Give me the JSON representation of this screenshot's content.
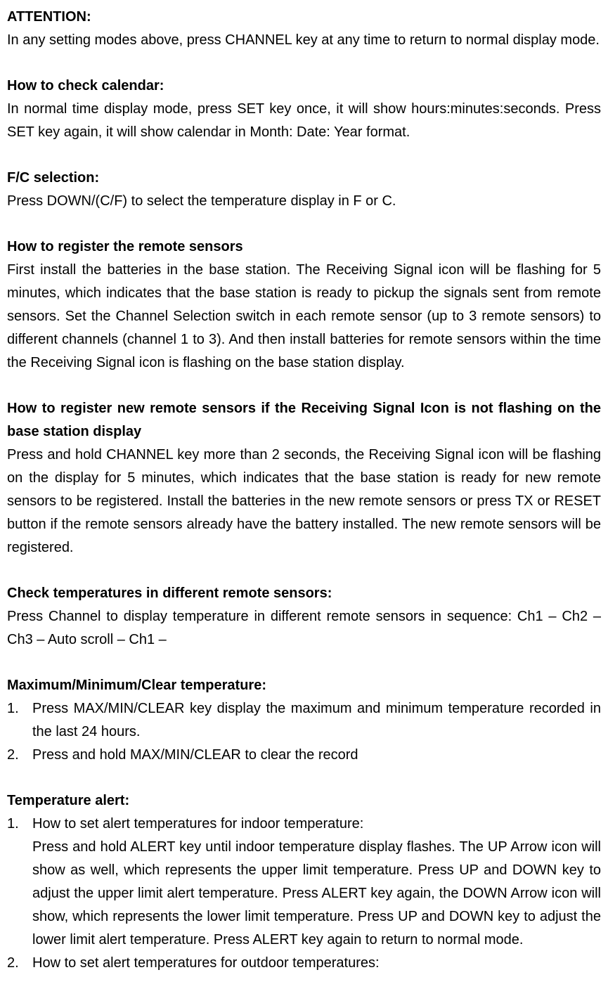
{
  "s1": {
    "h": "ATTENTION:",
    "p": "In any setting modes above, press CHANNEL key at any time to return to normal display mode."
  },
  "s2": {
    "h": "How to check calendar:",
    "p": "In normal time display mode, press SET key once, it will show hours:minutes:seconds. Press SET key again, it will show calendar in Month: Date: Year format."
  },
  "s3": {
    "h": "F/C selection:",
    "p": "Press DOWN/(C/F) to select the temperature display in F or C."
  },
  "s4": {
    "h": "How to register the remote sensors",
    "p": "First install the batteries in the base station. The Receiving Signal icon will be flashing for 5 minutes, which indicates that the base station is ready to pickup the signals sent from remote sensors. Set the Channel Selection switch in each remote sensor (up to 3 remote sensors) to different channels (channel 1 to 3). And then install batteries for remote sensors within the time the Receiving Signal icon is flashing on the base station display."
  },
  "s5": {
    "h": "How to register new remote sensors if the Receiving Signal Icon is not flashing on the base station display",
    "p": "Press and hold CHANNEL key more than 2 seconds, the Receiving Signal icon will be flashing on the display for 5 minutes, which indicates that the base station is ready for new remote sensors to be registered. Install the batteries in the new remote sensors or press TX or RESET button if the remote sensors already have the battery installed. The new remote sensors will be registered."
  },
  "s6": {
    "h": "Check temperatures in different remote sensors:",
    "p": "Press Channel to display temperature in different remote sensors in sequence: Ch1 – Ch2 – Ch3 – Auto scroll – Ch1 –"
  },
  "s7": {
    "h": "Maximum/Minimum/Clear temperature:",
    "items": [
      {
        "n": "1.",
        "t": "Press MAX/MIN/CLEAR key display the maximum and minimum temperature recorded in the last 24 hours."
      },
      {
        "n": "2.",
        "t": "Press and hold MAX/MIN/CLEAR to clear the record"
      }
    ]
  },
  "s8": {
    "h": "Temperature alert:",
    "items": [
      {
        "n": "1.",
        "lead": "How to set alert temperatures for indoor temperature:",
        "t": "Press and hold ALERT key until indoor temperature display flashes. The UP Arrow icon will show as well, which represents the upper limit temperature. Press UP and DOWN key to adjust the upper limit alert temperature. Press ALERT key again, the DOWN Arrow icon will show, which represents the lower limit temperature. Press UP and DOWN key to adjust the lower limit alert temperature. Press ALERT key again to return to normal mode."
      },
      {
        "n": "2.",
        "lead": "How to set alert temperatures for outdoor temperatures:"
      }
    ]
  }
}
